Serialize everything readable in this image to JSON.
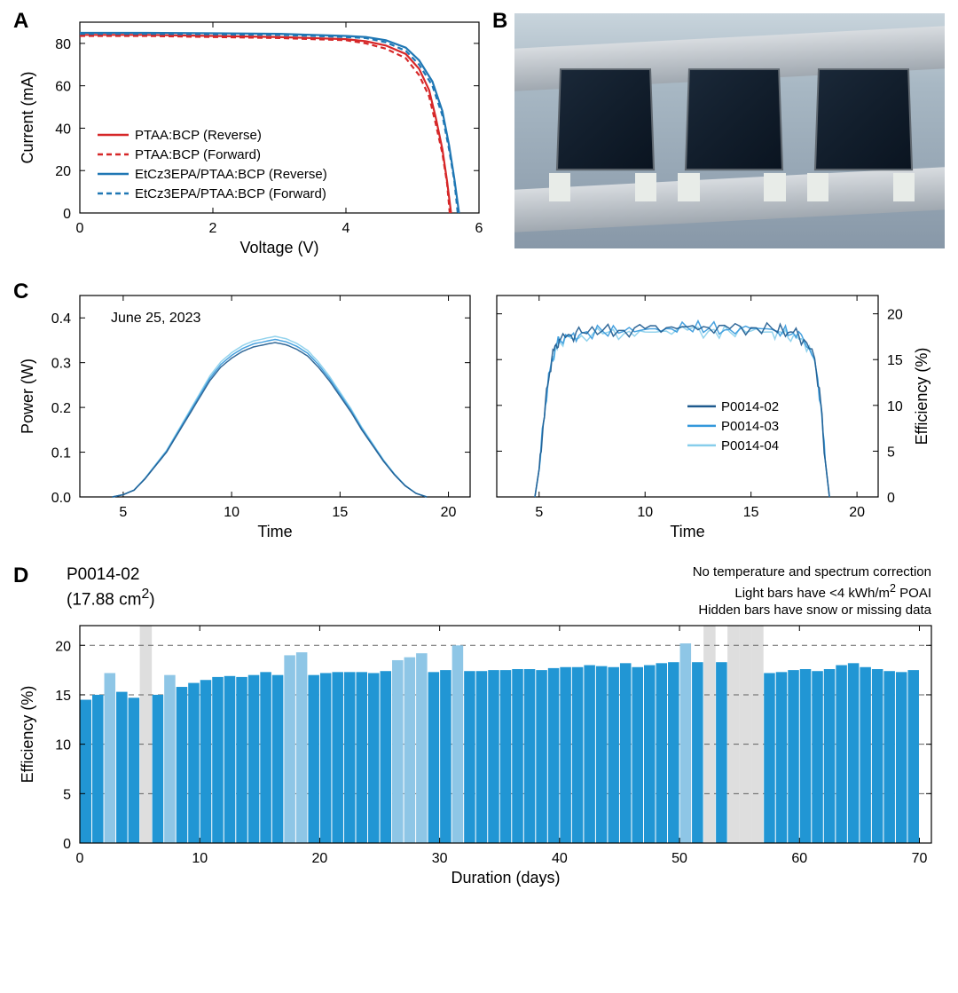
{
  "colors": {
    "red": "#d62728",
    "blue": "#1f77b4",
    "axis": "#000000",
    "grid": "#808080",
    "bar_normal": "#2196d4",
    "bar_light": "#8ec6e6",
    "bar_hidden": "#d0d0d0",
    "series1": "#1e5a8e",
    "series2": "#3498db",
    "series3": "#87ceeb"
  },
  "panelA": {
    "label": "A",
    "xlabel": "Voltage (V)",
    "ylabel": "Current (mA)",
    "xlim": [
      0,
      6
    ],
    "ylim": [
      0,
      90
    ],
    "xticks": [
      0,
      2,
      4,
      6
    ],
    "yticks": [
      0,
      20,
      40,
      60,
      80
    ],
    "legend": [
      {
        "label": "PTAA:BCP (Reverse)",
        "color": "#d62728",
        "dash": "none"
      },
      {
        "label": "PTAA:BCP (Forward)",
        "color": "#d62728",
        "dash": "6,4"
      },
      {
        "label": "EtCz3EPA/PTAA:BCP (Reverse)",
        "color": "#1f77b4",
        "dash": "none"
      },
      {
        "label": "EtCz3EPA/PTAA:BCP (Forward)",
        "color": "#1f77b4",
        "dash": "6,4"
      }
    ],
    "series": {
      "red_rev": [
        [
          0,
          84
        ],
        [
          1,
          84
        ],
        [
          2,
          83.5
        ],
        [
          3,
          83
        ],
        [
          3.5,
          82.5
        ],
        [
          4,
          82
        ],
        [
          4.3,
          81
        ],
        [
          4.6,
          79
        ],
        [
          4.9,
          75
        ],
        [
          5.1,
          68
        ],
        [
          5.25,
          58
        ],
        [
          5.35,
          45
        ],
        [
          5.45,
          30
        ],
        [
          5.52,
          15
        ],
        [
          5.58,
          0
        ]
      ],
      "red_fwd": [
        [
          0,
          83.5
        ],
        [
          1,
          83.5
        ],
        [
          2,
          83
        ],
        [
          3,
          82.5
        ],
        [
          3.5,
          82
        ],
        [
          4,
          81.5
        ],
        [
          4.3,
          80
        ],
        [
          4.6,
          77.5
        ],
        [
          4.9,
          73
        ],
        [
          5.1,
          65
        ],
        [
          5.25,
          55
        ],
        [
          5.35,
          42
        ],
        [
          5.45,
          28
        ],
        [
          5.52,
          14
        ],
        [
          5.56,
          0
        ]
      ],
      "blue_rev": [
        [
          0,
          85
        ],
        [
          1,
          85
        ],
        [
          2,
          84.8
        ],
        [
          3,
          84.5
        ],
        [
          3.5,
          84
        ],
        [
          4,
          83.5
        ],
        [
          4.3,
          83
        ],
        [
          4.6,
          81.5
        ],
        [
          4.9,
          78
        ],
        [
          5.1,
          72
        ],
        [
          5.3,
          62
        ],
        [
          5.45,
          48
        ],
        [
          5.55,
          32
        ],
        [
          5.63,
          16
        ],
        [
          5.7,
          0
        ]
      ],
      "blue_fwd": [
        [
          0,
          84.5
        ],
        [
          1,
          84.5
        ],
        [
          2,
          84.3
        ],
        [
          3,
          84
        ],
        [
          3.5,
          83.5
        ],
        [
          4,
          83
        ],
        [
          4.3,
          82.5
        ],
        [
          4.6,
          80.5
        ],
        [
          4.9,
          76.5
        ],
        [
          5.1,
          70
        ],
        [
          5.3,
          60
        ],
        [
          5.45,
          46
        ],
        [
          5.55,
          30
        ],
        [
          5.63,
          15
        ],
        [
          5.68,
          0
        ]
      ]
    }
  },
  "panelB": {
    "label": "B"
  },
  "panelC": {
    "label": "C",
    "date_annotation": "June 25, 2023",
    "left": {
      "xlabel": "Time",
      "ylabel": "Power (W)",
      "xlim": [
        3,
        21
      ],
      "ylim": [
        0,
        0.45
      ],
      "xticks": [
        5,
        10,
        15,
        20
      ],
      "yticks": [
        0.0,
        0.1,
        0.2,
        0.3,
        0.4
      ],
      "ytick_labels": [
        "0.0",
        "0.1",
        "0.2",
        "0.3",
        "0.4"
      ]
    },
    "right": {
      "xlabel": "Time",
      "ylabel": "Efficiency (%)",
      "xlim": [
        3,
        21
      ],
      "ylim": [
        0,
        22
      ],
      "xticks": [
        5,
        10,
        15,
        20
      ],
      "yticks": [
        0,
        5,
        10,
        15,
        20
      ]
    },
    "legend": [
      {
        "label": "P0014-02",
        "color": "#1e5a8e"
      },
      {
        "label": "P0014-03",
        "color": "#3498db"
      },
      {
        "label": "P0014-04",
        "color": "#87ceeb"
      }
    ],
    "power_curve_base": [
      [
        4.5,
        0
      ],
      [
        5,
        0.005
      ],
      [
        5.5,
        0.015
      ],
      [
        6,
        0.04
      ],
      [
        6.5,
        0.07
      ],
      [
        7,
        0.1
      ],
      [
        7.5,
        0.14
      ],
      [
        8,
        0.18
      ],
      [
        8.5,
        0.22
      ],
      [
        9,
        0.26
      ],
      [
        9.5,
        0.29
      ],
      [
        10,
        0.31
      ],
      [
        10.5,
        0.325
      ],
      [
        11,
        0.335
      ],
      [
        11.5,
        0.34
      ],
      [
        12,
        0.345
      ],
      [
        12.5,
        0.34
      ],
      [
        13,
        0.33
      ],
      [
        13.5,
        0.315
      ],
      [
        14,
        0.29
      ],
      [
        14.5,
        0.26
      ],
      [
        15,
        0.225
      ],
      [
        15.5,
        0.19
      ],
      [
        16,
        0.15
      ],
      [
        16.5,
        0.115
      ],
      [
        17,
        0.08
      ],
      [
        17.5,
        0.05
      ],
      [
        18,
        0.025
      ],
      [
        18.5,
        0.008
      ],
      [
        19,
        0
      ]
    ],
    "eff_curve_base": [
      [
        4.8,
        0
      ],
      [
        5,
        3
      ],
      [
        5.2,
        8
      ],
      [
        5.4,
        12
      ],
      [
        5.6,
        15
      ],
      [
        5.8,
        16.5
      ],
      [
        6,
        17
      ],
      [
        6.5,
        17.5
      ],
      [
        7,
        17.8
      ],
      [
        8,
        18
      ],
      [
        9,
        18
      ],
      [
        10,
        18.2
      ],
      [
        11,
        18.3
      ],
      [
        12,
        18.4
      ],
      [
        13,
        18.3
      ],
      [
        14,
        18.2
      ],
      [
        15,
        18.3
      ],
      [
        16,
        18.2
      ],
      [
        16.5,
        18
      ],
      [
        17,
        17.8
      ],
      [
        17.5,
        17
      ],
      [
        18,
        15
      ],
      [
        18.3,
        10
      ],
      [
        18.5,
        4
      ],
      [
        18.7,
        0
      ]
    ]
  },
  "panelD": {
    "label": "D",
    "title_line1": "P0014-02",
    "title_line2": "(17.88 cm²)",
    "notes": [
      "No temperature and spectrum correction",
      "Light bars have <4 kWh/m² POAI",
      "Hidden bars have snow or missing data"
    ],
    "xlabel": "Duration (days)",
    "ylabel": "Efficiency (%)",
    "xlim": [
      0,
      71
    ],
    "ylim": [
      0,
      22
    ],
    "xticks": [
      0,
      10,
      20,
      30,
      40,
      50,
      60,
      70
    ],
    "yticks": [
      0,
      5,
      10,
      15,
      20
    ],
    "grid_y": [
      5,
      10,
      15,
      20
    ],
    "bars": [
      {
        "d": 1,
        "v": 14.5,
        "t": "n"
      },
      {
        "d": 2,
        "v": 15.0,
        "t": "n"
      },
      {
        "d": 3,
        "v": 17.2,
        "t": "l"
      },
      {
        "d": 4,
        "v": 15.3,
        "t": "n"
      },
      {
        "d": 5,
        "v": 14.7,
        "t": "n"
      },
      {
        "d": 6,
        "v": 0,
        "t": "h"
      },
      {
        "d": 7,
        "v": 15.0,
        "t": "n"
      },
      {
        "d": 8,
        "v": 17.0,
        "t": "l"
      },
      {
        "d": 9,
        "v": 15.8,
        "t": "n"
      },
      {
        "d": 10,
        "v": 16.2,
        "t": "n"
      },
      {
        "d": 11,
        "v": 16.5,
        "t": "n"
      },
      {
        "d": 12,
        "v": 16.8,
        "t": "n"
      },
      {
        "d": 13,
        "v": 16.9,
        "t": "n"
      },
      {
        "d": 14,
        "v": 16.8,
        "t": "n"
      },
      {
        "d": 15,
        "v": 17.0,
        "t": "n"
      },
      {
        "d": 16,
        "v": 17.3,
        "t": "n"
      },
      {
        "d": 17,
        "v": 17.0,
        "t": "n"
      },
      {
        "d": 18,
        "v": 19.0,
        "t": "l"
      },
      {
        "d": 19,
        "v": 19.3,
        "t": "l"
      },
      {
        "d": 20,
        "v": 17.0,
        "t": "n"
      },
      {
        "d": 21,
        "v": 17.2,
        "t": "n"
      },
      {
        "d": 22,
        "v": 17.3,
        "t": "n"
      },
      {
        "d": 23,
        "v": 17.3,
        "t": "n"
      },
      {
        "d": 24,
        "v": 17.3,
        "t": "n"
      },
      {
        "d": 25,
        "v": 17.2,
        "t": "n"
      },
      {
        "d": 26,
        "v": 17.4,
        "t": "n"
      },
      {
        "d": 27,
        "v": 18.5,
        "t": "l"
      },
      {
        "d": 28,
        "v": 18.8,
        "t": "l"
      },
      {
        "d": 29,
        "v": 19.2,
        "t": "l"
      },
      {
        "d": 30,
        "v": 17.3,
        "t": "n"
      },
      {
        "d": 31,
        "v": 17.5,
        "t": "n"
      },
      {
        "d": 32,
        "v": 20.0,
        "t": "l"
      },
      {
        "d": 33,
        "v": 17.4,
        "t": "n"
      },
      {
        "d": 34,
        "v": 17.4,
        "t": "n"
      },
      {
        "d": 35,
        "v": 17.5,
        "t": "n"
      },
      {
        "d": 36,
        "v": 17.5,
        "t": "n"
      },
      {
        "d": 37,
        "v": 17.6,
        "t": "n"
      },
      {
        "d": 38,
        "v": 17.6,
        "t": "n"
      },
      {
        "d": 39,
        "v": 17.5,
        "t": "n"
      },
      {
        "d": 40,
        "v": 17.7,
        "t": "n"
      },
      {
        "d": 41,
        "v": 17.8,
        "t": "n"
      },
      {
        "d": 42,
        "v": 17.8,
        "t": "n"
      },
      {
        "d": 43,
        "v": 18.0,
        "t": "n"
      },
      {
        "d": 44,
        "v": 17.9,
        "t": "n"
      },
      {
        "d": 45,
        "v": 17.8,
        "t": "n"
      },
      {
        "d": 46,
        "v": 18.2,
        "t": "n"
      },
      {
        "d": 47,
        "v": 17.8,
        "t": "n"
      },
      {
        "d": 48,
        "v": 18.0,
        "t": "n"
      },
      {
        "d": 49,
        "v": 18.2,
        "t": "n"
      },
      {
        "d": 50,
        "v": 18.3,
        "t": "n"
      },
      {
        "d": 51,
        "v": 20.2,
        "t": "l"
      },
      {
        "d": 52,
        "v": 18.3,
        "t": "n"
      },
      {
        "d": 53,
        "v": 0,
        "t": "h"
      },
      {
        "d": 54,
        "v": 18.3,
        "t": "n"
      },
      {
        "d": 55,
        "v": 0,
        "t": "h"
      },
      {
        "d": 56,
        "v": 0,
        "t": "h"
      },
      {
        "d": 57,
        "v": 0,
        "t": "h"
      },
      {
        "d": 58,
        "v": 17.2,
        "t": "n"
      },
      {
        "d": 59,
        "v": 17.3,
        "t": "n"
      },
      {
        "d": 60,
        "v": 17.5,
        "t": "n"
      },
      {
        "d": 61,
        "v": 17.6,
        "t": "n"
      },
      {
        "d": 62,
        "v": 17.4,
        "t": "n"
      },
      {
        "d": 63,
        "v": 17.6,
        "t": "n"
      },
      {
        "d": 64,
        "v": 18.0,
        "t": "n"
      },
      {
        "d": 65,
        "v": 18.2,
        "t": "n"
      },
      {
        "d": 66,
        "v": 17.8,
        "t": "n"
      },
      {
        "d": 67,
        "v": 17.6,
        "t": "n"
      },
      {
        "d": 68,
        "v": 17.4,
        "t": "n"
      },
      {
        "d": 69,
        "v": 17.3,
        "t": "n"
      },
      {
        "d": 70,
        "v": 17.5,
        "t": "n"
      }
    ]
  }
}
